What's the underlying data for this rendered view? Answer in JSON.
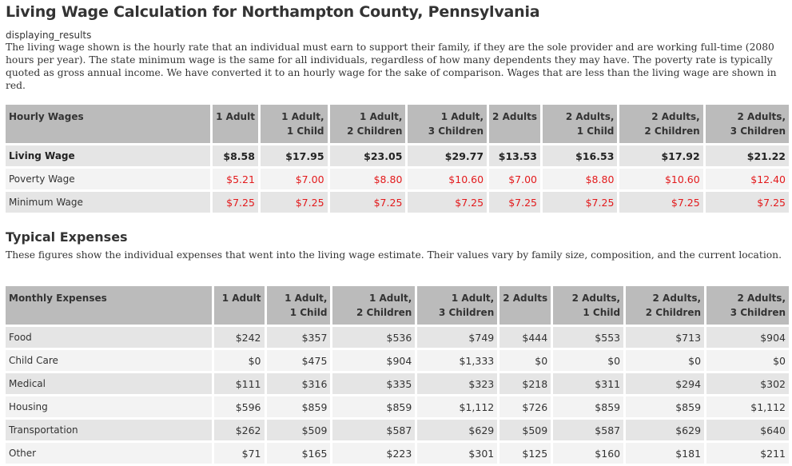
{
  "title": "Living Wage Calculation for Northampton County, Pennsylvania",
  "subtitle": "displaying_results",
  "intro": "The living wage shown is the hourly rate that an individual must earn to support their family, if they are the sole provider and are working full-time (2080 hours per year). The state minimum wage is the same for all individuals, regardless of how many dependents they may have. The poverty rate is typically quoted as gross annual income. We have converted it to an hourly wage for the sake of comparison. Wages that are less than the living wage are shown in red.",
  "hourly": {
    "header": "Hourly Wages",
    "columns": [
      {
        "l1": "1 Adult",
        "l2": ""
      },
      {
        "l1": "1 Adult,",
        "l2": "1 Child"
      },
      {
        "l1": "1 Adult,",
        "l2": "2 Children"
      },
      {
        "l1": "1 Adult,",
        "l2": "3 Children"
      },
      {
        "l1": "2 Adults",
        "l2": ""
      },
      {
        "l1": "2 Adults,",
        "l2": "1 Child"
      },
      {
        "l1": "2 Adults,",
        "l2": "2 Children"
      },
      {
        "l1": "2 Adults,",
        "l2": "3 Children"
      }
    ],
    "rows": [
      {
        "label": "Living Wage",
        "values": [
          "$8.58",
          "$17.95",
          "$23.05",
          "$29.77",
          "$13.53",
          "$16.53",
          "$17.92",
          "$21.22"
        ]
      },
      {
        "label": "Poverty Wage",
        "values": [
          "$5.21",
          "$7.00",
          "$8.80",
          "$10.60",
          "$7.00",
          "$8.80",
          "$10.60",
          "$12.40"
        ]
      },
      {
        "label": "Minimum Wage",
        "values": [
          "$7.25",
          "$7.25",
          "$7.25",
          "$7.25",
          "$7.25",
          "$7.25",
          "$7.25",
          "$7.25"
        ]
      }
    ]
  },
  "expenses_title": "Typical Expenses",
  "expenses_intro": "These figures show the individual expenses that went into the living wage estimate. Their values vary by family size, composition, and the current location.",
  "monthly": {
    "header": "Monthly Expenses",
    "columns": [
      {
        "l1": "1 Adult",
        "l2": ""
      },
      {
        "l1": "1 Adult,",
        "l2": "1 Child"
      },
      {
        "l1": "1 Adult,",
        "l2": "2 Children"
      },
      {
        "l1": "1 Adult,",
        "l2": "3 Children"
      },
      {
        "l1": "2 Adults",
        "l2": ""
      },
      {
        "l1": "2 Adults,",
        "l2": "1 Child"
      },
      {
        "l1": "2 Adults,",
        "l2": "2 Children"
      },
      {
        "l1": "2 Adults,",
        "l2": "3 Children"
      }
    ],
    "rows": [
      {
        "label": "Food",
        "values": [
          "$242",
          "$357",
          "$536",
          "$749",
          "$444",
          "$553",
          "$713",
          "$904"
        ]
      },
      {
        "label": "Child Care",
        "values": [
          "$0",
          "$475",
          "$904",
          "$1,333",
          "$0",
          "$0",
          "$0",
          "$0"
        ]
      },
      {
        "label": "Medical",
        "values": [
          "$111",
          "$316",
          "$335",
          "$323",
          "$218",
          "$311",
          "$294",
          "$302"
        ]
      },
      {
        "label": "Housing",
        "values": [
          "$596",
          "$859",
          "$859",
          "$1,112",
          "$726",
          "$859",
          "$859",
          "$1,112"
        ]
      },
      {
        "label": "Transportation",
        "values": [
          "$262",
          "$509",
          "$587",
          "$629",
          "$509",
          "$587",
          "$629",
          "$640"
        ]
      },
      {
        "label": "Other",
        "values": [
          "$71",
          "$165",
          "$223",
          "$301",
          "$125",
          "$160",
          "$181",
          "$211"
        ]
      }
    ]
  },
  "colors": {
    "red_text": "#e31a1c",
    "header_bg": "#bbbbbb",
    "row_alt": "#e5e5e5",
    "row_light": "#f3f3f3"
  }
}
